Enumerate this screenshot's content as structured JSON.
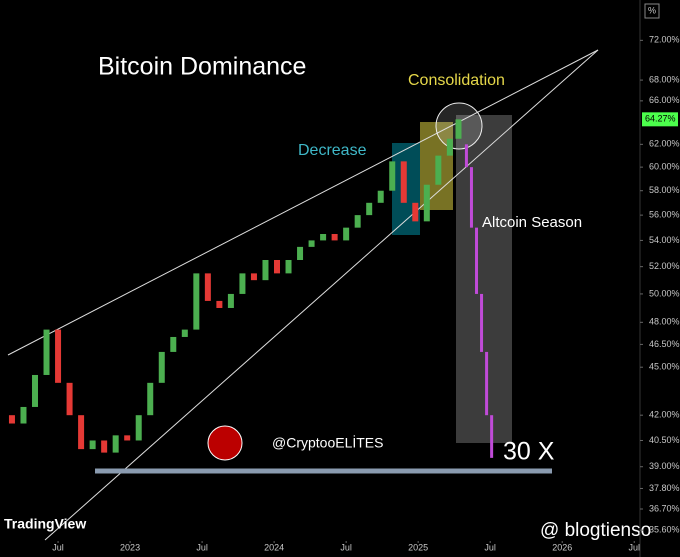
{
  "chart_data": {
    "type": "candlestick",
    "title": "Bitcoin Dominance",
    "axis_unit": "%",
    "log_scale": true,
    "x": [
      2022.1,
      2022.18,
      2022.26,
      2022.34,
      2022.42,
      2022.5,
      2022.58,
      2022.66,
      2022.74,
      2022.82,
      2022.9,
      2022.98,
      2023.06,
      2023.14,
      2023.22,
      2023.3,
      2023.38,
      2023.46,
      2023.54,
      2023.62,
      2023.7,
      2023.78,
      2023.86,
      2023.94,
      2024.02,
      2024.1,
      2024.18,
      2024.26,
      2024.34,
      2024.42,
      2024.5,
      2024.58,
      2024.66,
      2024.74,
      2024.82,
      2024.9,
      2024.98,
      2025.06,
      2025.14,
      2025.22,
      2025.28
    ],
    "values": [
      42.0,
      41.5,
      42.5,
      44.5,
      47.5,
      44.0,
      42.0,
      40.0,
      40.5,
      39.8,
      40.8,
      40.5,
      42.0,
      44.0,
      46.0,
      47.0,
      47.5,
      51.5,
      49.5,
      49.0,
      50.0,
      51.5,
      51.0,
      52.5,
      51.5,
      52.5,
      53.5,
      54.0,
      54.5,
      54.0,
      55.0,
      56.0,
      57.0,
      58.0,
      60.5,
      57.0,
      55.5,
      58.5,
      61.0,
      62.5,
      64.27
    ],
    "up_color": "#4caf50",
    "down_color": "#e53935",
    "projection": {
      "x": [
        2025.3,
        2025.335,
        2025.37,
        2025.405,
        2025.44,
        2025.475,
        2025.51
      ],
      "values": [
        62,
        60,
        55,
        50,
        46,
        42,
        39.5
      ],
      "color": "#c04bd8"
    },
    "last_value_label": "64.27%",
    "last_value_color": "#4cff4c",
    "xlim": [
      2022.097,
      2026.54
    ],
    "xticks": [
      {
        "value": 2022.5,
        "label": "Jul"
      },
      2023,
      {
        "value": 2023.5,
        "label": "Jul"
      },
      2024,
      {
        "value": 2024.5,
        "label": "Jul"
      },
      2025,
      {
        "value": 2025.5,
        "label": "Jul"
      },
      2026,
      {
        "value": 2026.5,
        "label": "Jul"
      }
    ],
    "ylim": [
      35.1,
      76.3
    ],
    "yticks": [
      {
        "value": 72,
        "label": "72.00%"
      },
      {
        "value": 68,
        "label": "68.00%"
      },
      {
        "value": 66,
        "label": "66.00%"
      },
      {
        "value": 62,
        "label": "62.00%"
      },
      {
        "value": 60,
        "label": "60.00%"
      },
      {
        "value": 58,
        "label": "58.00%"
      },
      {
        "value": 56,
        "label": "56.00%"
      },
      {
        "value": 54,
        "label": "54.00%"
      },
      {
        "value": 52,
        "label": "52.00%"
      },
      {
        "value": 50,
        "label": "50.00%"
      },
      {
        "value": 48,
        "label": "48.00%"
      },
      {
        "value": 46.5,
        "label": "46.50%"
      },
      {
        "value": 45,
        "label": "45.00%"
      },
      {
        "value": 42,
        "label": "42.00%"
      },
      {
        "value": 40.5,
        "label": "40.50%"
      },
      {
        "value": 39,
        "label": "39.00%"
      },
      {
        "value": 37.8,
        "label": "37.80%"
      },
      {
        "value": 36.7,
        "label": "36.70%"
      },
      {
        "value": 35.6,
        "label": "35.60%"
      }
    ],
    "annotations": {
      "decrease": "Decrease",
      "consolidation": "Consolidation",
      "altcoin_season": "Altcoin Season",
      "handle": "@CryptooELİTES",
      "multiplier": "30 X"
    },
    "branding": "TradingView",
    "watermark": "@ blogtienso"
  }
}
